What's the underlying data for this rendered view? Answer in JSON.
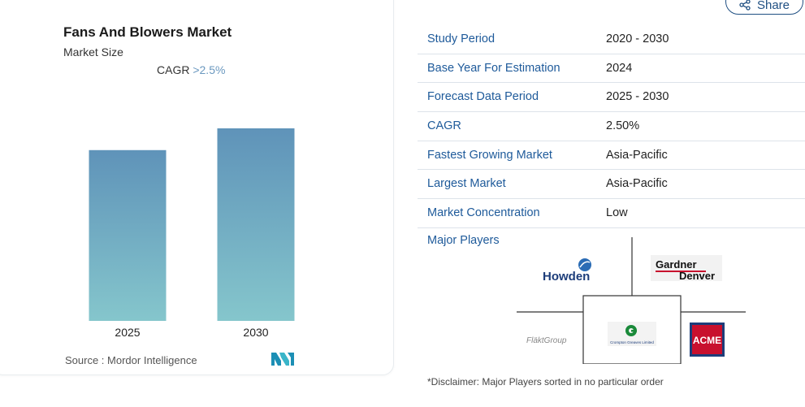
{
  "chart_data": {
    "type": "bar",
    "title": "Fans And Blowers Market",
    "subtitle": "Market Size",
    "cagr_label": "CAGR",
    "cagr_value": ">2.5%",
    "categories": [
      "2025",
      "2030"
    ],
    "values": [
      0.887,
      1.0
    ],
    "value_note": "relative bar heights (no y-axis values shown)",
    "xlabel": "",
    "ylabel": "",
    "grid": false,
    "legend": "none",
    "bar_gradient": [
      "#5f93b9",
      "#85c6cc"
    ]
  },
  "source_label": "Source :",
  "source_name": "Mordor Intelligence",
  "share_label": "Share",
  "info_rows": [
    {
      "label": "Study Period",
      "value": "2020 - 2030"
    },
    {
      "label": "Base Year For Estimation",
      "value": "2024"
    },
    {
      "label": "Forecast Data Period",
      "value": "2025 - 2030"
    },
    {
      "label": "CAGR",
      "value": "2.50%"
    },
    {
      "label": "Fastest Growing Market",
      "value": "Asia-Pacific"
    },
    {
      "label": "Largest Market",
      "value": "Asia-Pacific"
    },
    {
      "label": "Market Concentration",
      "value": "Low"
    }
  ],
  "major_players_label": "Major Players",
  "players": {
    "howden": "Howden",
    "gardner_1": "Gardner",
    "gardner_2": "Denver",
    "flakt": "FläktGroup",
    "crompton": "Crompton Greaves Limited",
    "acme": "ACME"
  },
  "disclaimer": "*Disclaimer: Major Players sorted in no particular order",
  "colors": {
    "accent": "#1e5a9a",
    "label_blue": "#1e5a9a"
  }
}
